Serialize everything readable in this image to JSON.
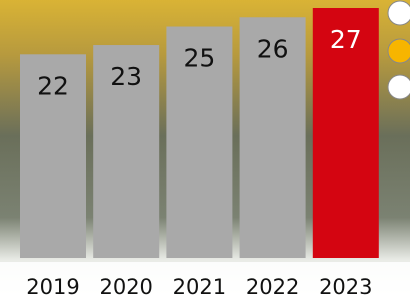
{
  "chart_data": {
    "type": "bar",
    "categories": [
      "2019",
      "2020",
      "2021",
      "2022",
      "2023"
    ],
    "values": [
      22,
      23,
      25,
      26,
      27
    ],
    "colors": [
      "#a9a9a9",
      "#a9a9a9",
      "#a9a9a9",
      "#a9a9a9",
      "#d40511"
    ]
  }
}
